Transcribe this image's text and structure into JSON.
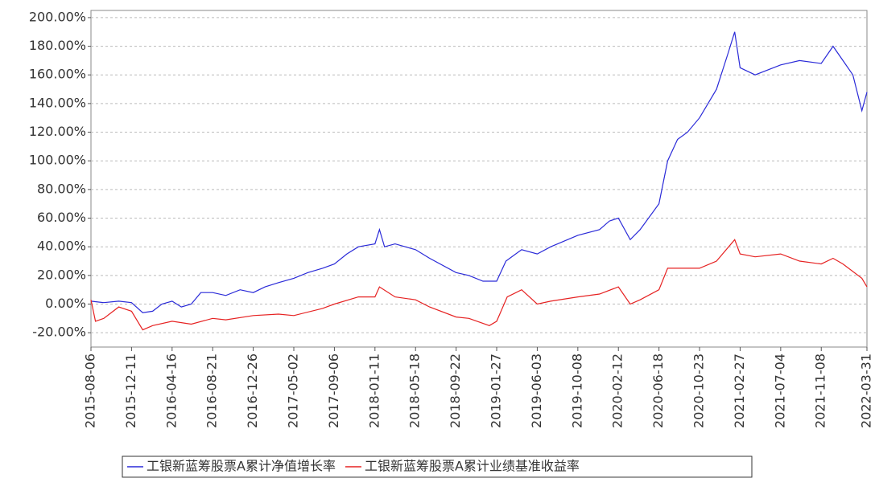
{
  "chart_data": {
    "type": "line",
    "xlim": [
      "2015-08-06",
      "2022-03-31"
    ],
    "xticks": [
      "2015-08-06",
      "2015-12-11",
      "2016-04-16",
      "2016-08-21",
      "2016-12-26",
      "2017-05-02",
      "2017-09-06",
      "2018-01-11",
      "2018-05-18",
      "2018-09-22",
      "2019-01-27",
      "2019-06-03",
      "2019-10-08",
      "2020-02-12",
      "2020-06-18",
      "2020-10-23",
      "2021-02-27",
      "2021-07-04",
      "2021-11-08",
      "2022-03-31"
    ],
    "ylim": [
      -30,
      205
    ],
    "yticks": [
      {
        "value": -20,
        "label": "-20.00%"
      },
      {
        "value": 0,
        "label": "0.00%"
      },
      {
        "value": 20,
        "label": "20.00%"
      },
      {
        "value": 40,
        "label": "40.00%"
      },
      {
        "value": 60,
        "label": "60.00%"
      },
      {
        "value": 80,
        "label": "80.00%"
      },
      {
        "value": 100,
        "label": "100.00%"
      },
      {
        "value": 120,
        "label": "120.00%"
      },
      {
        "value": 140,
        "label": "140.00%"
      },
      {
        "value": 160,
        "label": "160.00%"
      },
      {
        "value": 180,
        "label": "180.00%"
      },
      {
        "value": 200,
        "label": "200.00%"
      }
    ],
    "grid": true,
    "legend": "bottom",
    "series": [
      {
        "name": "工银新蓝筹股票A累计净值增长率",
        "color": "#2a2ad8",
        "x": [
          "2015-08-06",
          "2015-09-15",
          "2015-11-01",
          "2015-12-11",
          "2016-01-15",
          "2016-02-15",
          "2016-03-15",
          "2016-04-16",
          "2016-05-15",
          "2016-06-15",
          "2016-07-15",
          "2016-08-21",
          "2016-10-01",
          "2016-11-15",
          "2016-12-26",
          "2017-02-01",
          "2017-03-15",
          "2017-05-02",
          "2017-06-15",
          "2017-07-31",
          "2017-09-06",
          "2017-10-15",
          "2017-11-20",
          "2018-01-11",
          "2018-01-25",
          "2018-02-10",
          "2018-03-15",
          "2018-05-18",
          "2018-07-01",
          "2018-09-22",
          "2018-11-01",
          "2018-12-15",
          "2019-01-27",
          "2019-02-25",
          "2019-04-15",
          "2019-06-03",
          "2019-07-15",
          "2019-10-08",
          "2019-12-15",
          "2020-01-15",
          "2020-02-12",
          "2020-03-20",
          "2020-04-20",
          "2020-06-18",
          "2020-07-15",
          "2020-08-15",
          "2020-09-15",
          "2020-10-23",
          "2020-12-15",
          "2021-01-20",
          "2021-02-10",
          "2021-02-27",
          "2021-04-15",
          "2021-07-04",
          "2021-09-01",
          "2021-11-08",
          "2021-12-15",
          "2022-01-15",
          "2022-02-15",
          "2022-03-15",
          "2022-03-31"
        ],
        "values": [
          2,
          1,
          2,
          1,
          -6,
          -5,
          0,
          2,
          -2,
          0,
          8,
          8,
          6,
          10,
          8,
          12,
          15,
          18,
          22,
          25,
          28,
          35,
          40,
          42,
          52,
          40,
          42,
          38,
          32,
          22,
          20,
          16,
          16,
          30,
          38,
          35,
          40,
          48,
          52,
          58,
          60,
          45,
          52,
          70,
          100,
          115,
          120,
          130,
          150,
          175,
          190,
          165,
          160,
          167,
          170,
          168,
          180,
          170,
          160,
          135,
          148
        ]
      },
      {
        "name": "工银新蓝筹股票A累计业绩基准收益率",
        "color": "#e62222",
        "x": [
          "2015-08-06",
          "2015-08-20",
          "2015-09-15",
          "2015-11-01",
          "2015-12-11",
          "2016-01-15",
          "2016-02-15",
          "2016-04-16",
          "2016-06-15",
          "2016-08-21",
          "2016-10-01",
          "2016-12-26",
          "2017-03-15",
          "2017-05-02",
          "2017-07-31",
          "2017-09-06",
          "2017-11-20",
          "2018-01-11",
          "2018-01-25",
          "2018-03-15",
          "2018-05-18",
          "2018-07-01",
          "2018-09-22",
          "2018-11-01",
          "2019-01-04",
          "2019-01-27",
          "2019-03-01",
          "2019-04-15",
          "2019-06-03",
          "2019-07-15",
          "2019-10-08",
          "2019-12-15",
          "2020-02-12",
          "2020-03-20",
          "2020-04-20",
          "2020-06-18",
          "2020-07-15",
          "2020-09-15",
          "2020-10-23",
          "2020-12-15",
          "2021-02-10",
          "2021-02-27",
          "2021-04-15",
          "2021-07-04",
          "2021-09-01",
          "2021-11-08",
          "2021-12-15",
          "2022-01-15",
          "2022-03-15",
          "2022-03-31"
        ],
        "values": [
          3,
          -12,
          -10,
          -2,
          -5,
          -18,
          -15,
          -12,
          -14,
          -10,
          -11,
          -8,
          -7,
          -8,
          -3,
          0,
          5,
          5,
          12,
          5,
          3,
          -2,
          -9,
          -10,
          -15,
          -12,
          5,
          10,
          0,
          2,
          5,
          7,
          12,
          0,
          3,
          10,
          25,
          25,
          25,
          30,
          45,
          35,
          33,
          35,
          30,
          28,
          32,
          28,
          18,
          12
        ]
      }
    ]
  }
}
